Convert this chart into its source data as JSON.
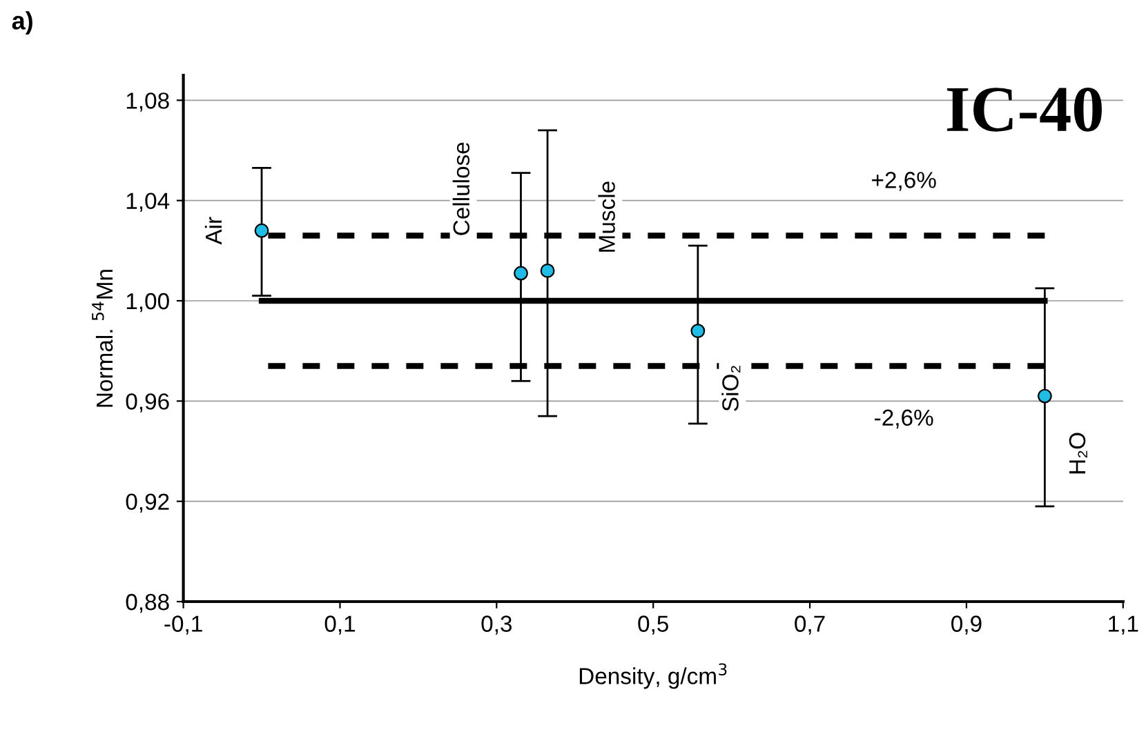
{
  "chart_data": {
    "type": "scatter",
    "xlabel": "Density, g/cm$^{3}$",
    "ylabel": "Normal. $^{54}$Mn",
    "xlim": [
      -0.1,
      1.1
    ],
    "xticks": [
      {
        "value": -0.1,
        "label": "-0,1"
      },
      {
        "value": 0.1,
        "label": "0,1"
      },
      {
        "value": 0.3,
        "label": "0,3"
      },
      {
        "value": 0.5,
        "label": "0,5"
      },
      {
        "value": 0.7,
        "label": "0,7"
      },
      {
        "value": 0.9,
        "label": "0,9"
      },
      {
        "value": 1.1,
        "label": "1,1"
      }
    ],
    "ylim": [
      0.88,
      1.09
    ],
    "yticks": [
      {
        "value": 0.88,
        "label": "0,88"
      },
      {
        "value": 0.92,
        "label": "0,92"
      },
      {
        "value": 0.96,
        "label": "0,96"
      },
      {
        "value": 1.0,
        "label": "1,00"
      },
      {
        "value": 1.04,
        "label": "1,04"
      },
      {
        "value": 1.08,
        "label": "1,08"
      }
    ],
    "grid": "y",
    "series": [
      {
        "type": "line",
        "color": "#000000",
        "line_style": "solid",
        "marker": "none",
        "x": [
          0.0,
          1.0
        ],
        "values": [
          1.0,
          1.0
        ]
      },
      {
        "type": "line",
        "color": "#000000",
        "line_style": "dashed",
        "marker": "none",
        "x": [
          1.0,
          0.0
        ],
        "values": [
          1.026,
          1.026
        ]
      },
      {
        "type": "line",
        "color": "#000000",
        "line_style": "dashed",
        "marker": "none",
        "x": [
          1.0,
          0.0
        ],
        "values": [
          0.974,
          0.974
        ]
      },
      {
        "color": "#1fbde6",
        "marker": "circle",
        "x": [
          0.0,
          0.331,
          0.365,
          0.557,
          1.0
        ],
        "values": [
          1.028,
          1.011,
          1.012,
          0.988,
          0.962
        ],
        "errors": [
          [
            1.002,
            1.053
          ],
          [
            0.968,
            1.051
          ],
          [
            0.954,
            1.068
          ],
          [
            0.951,
            1.022
          ],
          [
            0.918,
            1.005
          ]
        ]
      }
    ],
    "annotations": [
      {
        "text": "Air",
        "x": 0.0,
        "y": 1.028
      },
      {
        "text": "Cellulose",
        "x": 0.331,
        "y": 1.011
      },
      {
        "text": "Muscle",
        "x": 0.365,
        "y": 1.012
      },
      {
        "text": "SiO₂",
        "x": 0.557,
        "y": 0.988
      },
      {
        "text": "H₂O",
        "x": 1.0,
        "y": 0.962
      },
      {
        "text": "+2,6%",
        "x": 0.82,
        "y": 1.026
      },
      {
        "text": "-2,6%",
        "x": 0.82,
        "y": 0.974
      },
      "IC-40",
      "a)"
    ]
  }
}
